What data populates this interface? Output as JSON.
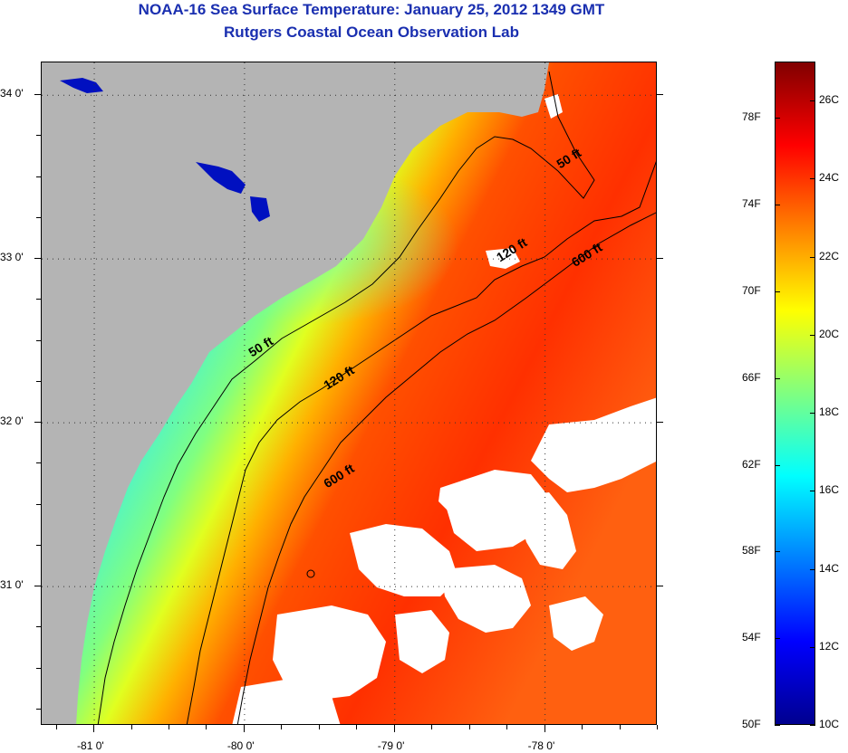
{
  "header": {
    "title": "NOAA-16 Sea Surface Temperature:  January 25, 2012 1349 GMT",
    "subtitle": "Rutgers Coastal Ocean Observation Lab"
  },
  "map": {
    "lon_range": [
      -81.35,
      -77.25
    ],
    "lat_range": [
      30.15,
      34.2
    ],
    "lon_ticks": [
      {
        "value": -81,
        "label": "-81 0'"
      },
      {
        "value": -80,
        "label": "-80 0'"
      },
      {
        "value": -79,
        "label": "-79 0'"
      },
      {
        "value": -78,
        "label": "-78 0'"
      }
    ],
    "lat_ticks": [
      {
        "value": 34,
        "label": "34 0'"
      },
      {
        "value": 33,
        "label": "33 0'"
      },
      {
        "value": 32,
        "label": "32 0'"
      },
      {
        "value": 31,
        "label": "31 0'"
      }
    ],
    "contour_labels": [
      {
        "text": "50 ft",
        "lon": -77.9,
        "lat": 33.55
      },
      {
        "text": "120 ft",
        "lon": -78.3,
        "lat": 32.98
      },
      {
        "text": "600 ft",
        "lon": -77.8,
        "lat": 32.95
      },
      {
        "text": "50 ft",
        "lon": -79.95,
        "lat": 32.4
      },
      {
        "text": "120 ft",
        "lon": -79.45,
        "lat": 32.2
      },
      {
        "text": "600 ft",
        "lon": -79.45,
        "lat": 31.6
      }
    ],
    "colors": {
      "land": "#b4b4b4",
      "cloud": "#ffffff",
      "contour": "#000000"
    }
  },
  "colorbar": {
    "range_c": [
      10,
      27
    ],
    "celsius_labels": [
      "26C",
      "24C",
      "22C",
      "20C",
      "18C",
      "16C",
      "14C",
      "12C",
      "10C"
    ],
    "fahrenheit_labels": [
      "78F",
      "74F",
      "70F",
      "66F",
      "62F",
      "58F",
      "54F",
      "50F"
    ],
    "colormap": [
      "#00008f",
      "#0000ff",
      "#0080ff",
      "#00ffff",
      "#80ff80",
      "#ffff00",
      "#ff8000",
      "#ff0000",
      "#800000"
    ]
  }
}
